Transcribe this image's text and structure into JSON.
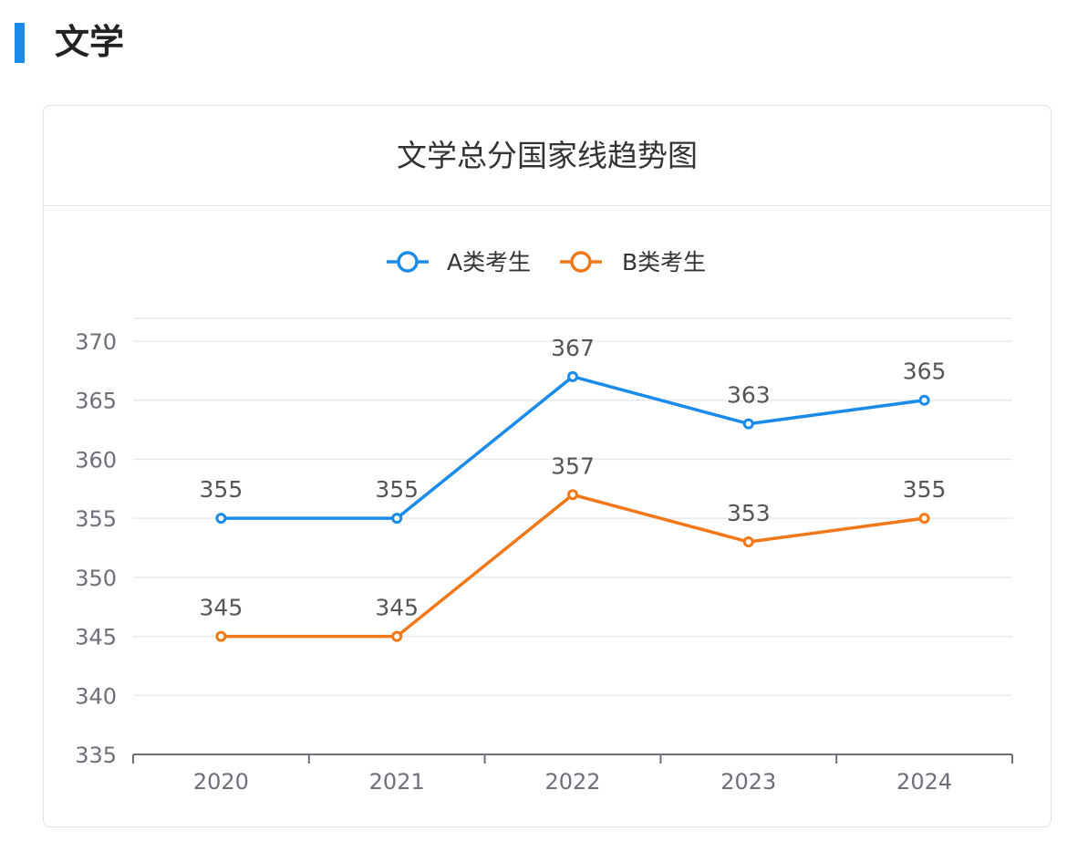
{
  "section": {
    "title": "文学"
  },
  "card": {
    "title": "文学总分国家线趋势图"
  },
  "colors": {
    "accent": "#1a8be8",
    "seriesA": "#1a8be8",
    "seriesB": "#f07819"
  },
  "chart_data": {
    "type": "line",
    "title": "文学总分国家线趋势图",
    "categories": [
      "2020",
      "2021",
      "2022",
      "2023",
      "2024"
    ],
    "series": [
      {
        "name": "A类考生",
        "values": [
          355,
          355,
          367,
          363,
          365
        ],
        "color": "#1a8be8"
      },
      {
        "name": "B类考生",
        "values": [
          345,
          345,
          357,
          353,
          355
        ],
        "color": "#f07819"
      }
    ],
    "yticks": [
      335,
      340,
      345,
      350,
      355,
      360,
      365,
      370
    ],
    "ylim": [
      335,
      370
    ],
    "grid": true,
    "legend": "top-center",
    "data_labels": true
  }
}
